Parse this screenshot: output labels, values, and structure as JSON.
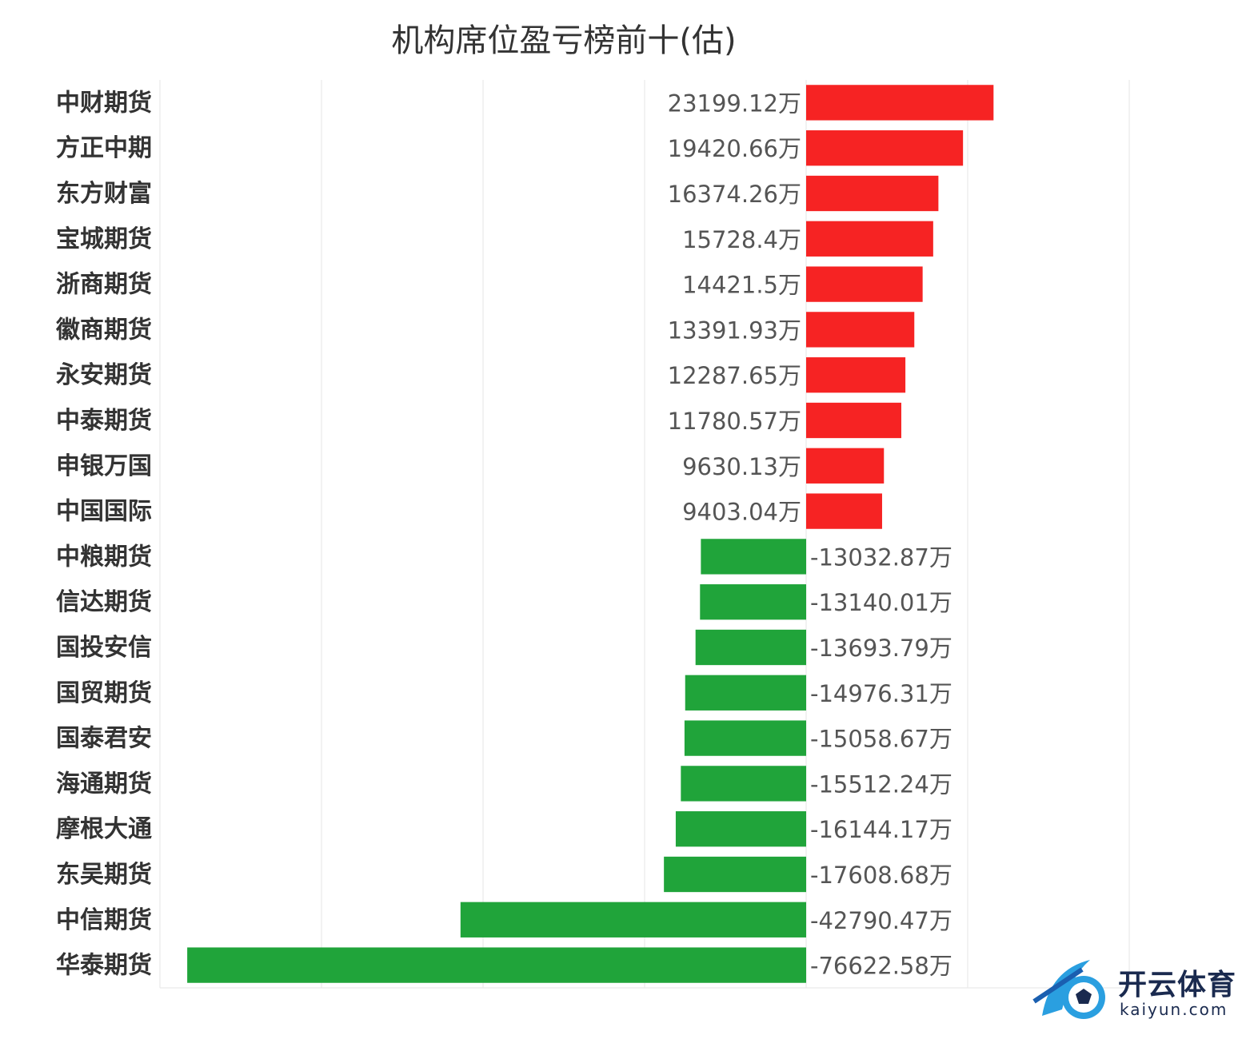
{
  "chart_data": {
    "type": "bar",
    "orientation": "horizontal",
    "title": "机构席位盈亏榜前十(估)",
    "unit_suffix": "万",
    "categories": [
      "中财期货",
      "方正中期",
      "东方财富",
      "宝城期货",
      "浙商期货",
      "徽商期货",
      "永安期货",
      "中泰期货",
      "申银万国",
      "中国国际",
      "中粮期货",
      "信达期货",
      "国投安信",
      "国贸期货",
      "国泰君安",
      "海通期货",
      "摩根大通",
      "东吴期货",
      "中信期货",
      "华泰期货"
    ],
    "values": [
      23199.12,
      19420.66,
      16374.26,
      15728.4,
      14421.5,
      13391.93,
      12287.65,
      11780.57,
      9630.13,
      9403.04,
      -13032.87,
      -13140.01,
      -13693.79,
      -14976.31,
      -15058.67,
      -15512.24,
      -16144.17,
      -17608.68,
      -42790.47,
      -76622.58
    ],
    "value_labels": [
      "23199.12万",
      "19420.66万",
      "16374.26万",
      "15728.4万",
      "14421.5万",
      "13391.93万",
      "12287.65万",
      "11780.57万",
      "9630.13万",
      "9403.04万",
      "-13032.87万",
      "-13140.01万",
      "-13693.79万",
      "-14976.31万",
      "-15058.67万",
      "-15512.24万",
      "-16144.17万",
      "-17608.68万",
      "-42790.47万",
      "-76622.58万"
    ],
    "xlim": [
      -80000,
      40000
    ],
    "grid": true,
    "colors": {
      "positive": "#f62323",
      "negative": "#20a43a"
    }
  },
  "logo": {
    "main_text": "开云体育",
    "sub_text": "kaiyun.com",
    "color": "#1a2a4f",
    "accent": "#2a9fe0"
  }
}
